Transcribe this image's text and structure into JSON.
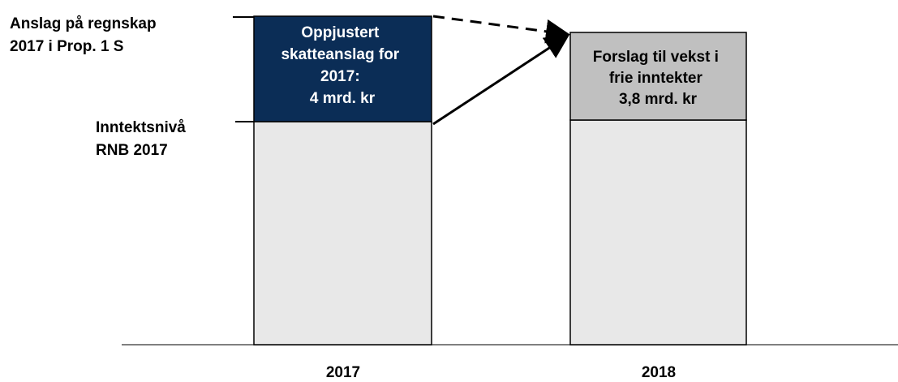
{
  "left_labels": {
    "estimate": [
      "Anslag på regnskap",
      "2017 i Prop. 1 S"
    ],
    "income_level": [
      "Inntektsnivå",
      "RNB 2017"
    ]
  },
  "bars": [
    {
      "year": "2017",
      "top_text": [
        "Oppjustert",
        "skatteanslag for",
        "2017:",
        "4 mrd. kr"
      ]
    },
    {
      "year": "2018",
      "top_text": [
        "Forslag til vekst i",
        "frie inntekter",
        "3,8 mrd. kr"
      ]
    }
  ]
}
